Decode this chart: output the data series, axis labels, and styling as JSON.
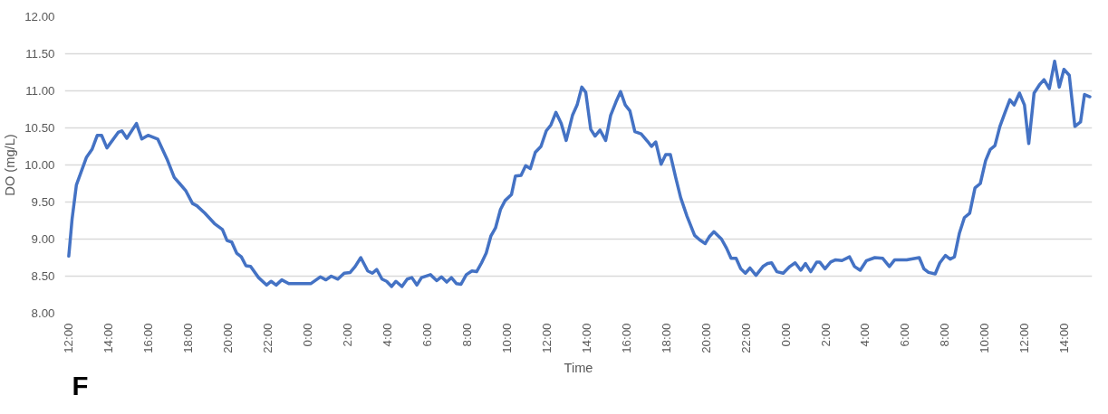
{
  "chart_data": {
    "type": "line",
    "xlabel": "Time",
    "ylabel": "DO (mg/L)",
    "annotations": [
      "F"
    ],
    "xlim": [
      "2000-01-01T11:48",
      "2000-01-03T15:24"
    ],
    "ylim": [
      8.0,
      12.0
    ],
    "xticks": [
      {
        "value": "2000-01-01T12:00",
        "label": "12:00"
      },
      {
        "value": "2000-01-01T14:00",
        "label": "14:00"
      },
      {
        "value": "2000-01-01T16:00",
        "label": "16:00"
      },
      {
        "value": "2000-01-01T18:00",
        "label": "18:00"
      },
      {
        "value": "2000-01-01T20:00",
        "label": "20:00"
      },
      {
        "value": "2000-01-01T22:00",
        "label": "22:00"
      },
      {
        "value": "2000-01-02T00:00",
        "label": "0:00"
      },
      {
        "value": "2000-01-02T02:00",
        "label": "2:00"
      },
      {
        "value": "2000-01-02T04:00",
        "label": "4:00"
      },
      {
        "value": "2000-01-02T06:00",
        "label": "6:00"
      },
      {
        "value": "2000-01-02T08:00",
        "label": "8:00"
      },
      {
        "value": "2000-01-02T10:00",
        "label": "10:00"
      },
      {
        "value": "2000-01-02T12:00",
        "label": "12:00"
      },
      {
        "value": "2000-01-02T14:00",
        "label": "14:00"
      },
      {
        "value": "2000-01-02T16:00",
        "label": "16:00"
      },
      {
        "value": "2000-01-02T18:00",
        "label": "18:00"
      },
      {
        "value": "2000-01-02T20:00",
        "label": "20:00"
      },
      {
        "value": "2000-01-02T22:00",
        "label": "22:00"
      },
      {
        "value": "2000-01-03T00:00",
        "label": "0:00"
      },
      {
        "value": "2000-01-03T02:00",
        "label": "2:00"
      },
      {
        "value": "2000-01-03T04:00",
        "label": "4:00"
      },
      {
        "value": "2000-01-03T06:00",
        "label": "6:00"
      },
      {
        "value": "2000-01-03T08:00",
        "label": "8:00"
      },
      {
        "value": "2000-01-03T10:00",
        "label": "10:00"
      },
      {
        "value": "2000-01-03T12:00",
        "label": "12:00"
      },
      {
        "value": "2000-01-03T14:00",
        "label": "14:00"
      }
    ],
    "yticks": [
      {
        "value": 8.0,
        "label": "8.00"
      },
      {
        "value": 8.5,
        "label": "8.50"
      },
      {
        "value": 9.0,
        "label": "9.00"
      },
      {
        "value": 9.5,
        "label": "9.50"
      },
      {
        "value": 10.0,
        "label": "10.00"
      },
      {
        "value": 10.5,
        "label": "10.50"
      },
      {
        "value": 11.0,
        "label": "11.00"
      },
      {
        "value": 11.5,
        "label": "11.50"
      },
      {
        "value": 12.0,
        "label": "12.00"
      }
    ],
    "grid": "y",
    "marker": "none",
    "line_style": "solid",
    "series": [
      {
        "color": "#4472c4",
        "x": [
          "2000-01-01T12:00",
          "2000-01-01T12:10",
          "2000-01-01T12:23",
          "2000-01-01T12:53",
          "2000-01-01T13:10",
          "2000-01-01T13:26",
          "2000-01-01T13:39",
          "2000-01-01T13:55",
          "2000-01-01T14:29",
          "2000-01-01T14:40",
          "2000-01-01T14:55",
          "2000-01-01T15:24",
          "2000-01-01T15:40",
          "2000-01-01T15:59",
          "2000-01-01T16:28",
          "2000-01-01T16:56",
          "2000-01-01T17:18",
          "2000-01-01T17:34",
          "2000-01-01T17:53",
          "2000-01-01T18:13",
          "2000-01-01T18:26",
          "2000-01-01T18:50",
          "2000-01-01T19:19",
          "2000-01-01T19:43",
          "2000-01-01T19:57",
          "2000-01-01T20:11",
          "2000-01-01T20:26",
          "2000-01-01T20:40",
          "2000-01-01T20:54",
          "2000-01-01T21:08",
          "2000-01-01T21:32",
          "2000-01-01T21:56",
          "2000-01-01T22:10",
          "2000-01-01T22:25",
          "2000-01-01T22:42",
          "2000-01-01T23:03",
          "2000-01-02T00:10",
          "2000-01-02T00:38",
          "2000-01-02T00:55",
          "2000-01-02T01:11",
          "2000-01-02T01:31",
          "2000-01-02T01:50",
          "2000-01-02T02:08",
          "2000-01-02T02:23",
          "2000-01-02T02:40",
          "2000-01-02T03:01",
          "2000-01-02T03:15",
          "2000-01-02T03:28",
          "2000-01-02T03:44",
          "2000-01-02T03:58",
          "2000-01-02T04:13",
          "2000-01-02T04:26",
          "2000-01-02T04:44",
          "2000-01-02T05:00",
          "2000-01-02T05:14",
          "2000-01-02T05:29",
          "2000-01-02T05:43",
          "2000-01-02T06:10",
          "2000-01-02T06:29",
          "2000-01-02T06:43",
          "2000-01-02T06:59",
          "2000-01-02T07:13",
          "2000-01-02T07:28",
          "2000-01-02T07:42",
          "2000-01-02T07:58",
          "2000-01-02T08:15",
          "2000-01-02T08:29",
          "2000-01-02T08:44",
          "2000-01-02T08:58",
          "2000-01-02T09:12",
          "2000-01-02T09:26",
          "2000-01-02T09:41",
          "2000-01-02T09:55",
          "2000-01-02T10:14",
          "2000-01-02T10:26",
          "2000-01-02T10:43",
          "2000-01-02T10:57",
          "2000-01-02T11:11",
          "2000-01-02T11:26",
          "2000-01-02T11:43",
          "2000-01-02T11:59",
          "2000-01-02T12:13",
          "2000-01-02T12:28",
          "2000-01-02T12:44",
          "2000-01-02T12:59",
          "2000-01-02T13:18",
          "2000-01-02T13:32",
          "2000-01-02T13:46",
          "2000-01-02T13:58",
          "2000-01-02T14:13",
          "2000-01-02T14:26",
          "2000-01-02T14:41",
          "2000-01-02T14:58",
          "2000-01-02T15:13",
          "2000-01-02T15:29",
          "2000-01-02T15:43",
          "2000-01-02T15:57",
          "2000-01-02T16:11",
          "2000-01-02T16:26",
          "2000-01-02T16:45",
          "2000-01-02T17:04",
          "2000-01-02T17:16",
          "2000-01-02T17:29",
          "2000-01-02T17:45",
          "2000-01-02T17:59",
          "2000-01-02T18:13",
          "2000-01-02T18:29",
          "2000-01-02T18:44",
          "2000-01-02T19:03",
          "2000-01-02T19:26",
          "2000-01-02T19:41",
          "2000-01-02T19:58",
          "2000-01-02T20:10",
          "2000-01-02T20:24",
          "2000-01-02T20:47",
          "2000-01-02T21:02",
          "2000-01-02T21:16",
          "2000-01-02T21:31",
          "2000-01-02T21:45",
          "2000-01-02T21:59",
          "2000-01-02T22:13",
          "2000-01-02T22:31",
          "2000-01-02T22:52",
          "2000-01-02T23:06",
          "2000-01-02T23:18",
          "2000-01-02T23:34",
          "2000-01-02T23:53",
          "2000-01-03T00:13",
          "2000-01-03T00:29",
          "2000-01-03T00:46",
          "2000-01-03T01:00",
          "2000-01-03T01:16",
          "2000-01-03T01:34",
          "2000-01-03T01:43",
          "2000-01-03T01:59",
          "2000-01-03T02:16",
          "2000-01-03T02:31",
          "2000-01-03T02:50",
          "2000-01-03T03:13",
          "2000-01-03T03:28",
          "2000-01-03T03:45",
          "2000-01-03T04:04",
          "2000-01-03T04:29",
          "2000-01-03T04:53",
          "2000-01-03T05:13",
          "2000-01-03T05:29",
          "2000-01-03T06:05",
          "2000-01-03T06:43",
          "2000-01-03T06:57",
          "2000-01-03T07:11",
          "2000-01-03T07:31",
          "2000-01-03T07:45",
          "2000-01-03T08:02",
          "2000-01-03T08:16",
          "2000-01-03T08:29",
          "2000-01-03T08:44",
          "2000-01-03T08:59",
          "2000-01-03T09:15",
          "2000-01-03T09:31",
          "2000-01-03T09:47",
          "2000-01-03T10:03",
          "2000-01-03T10:17",
          "2000-01-03T10:31",
          "2000-01-03T10:46",
          "2000-01-03T11:00",
          "2000-01-03T11:16",
          "2000-01-03T11:29",
          "2000-01-03T11:45",
          "2000-01-03T12:00",
          "2000-01-03T12:13",
          "2000-01-03T12:29",
          "2000-01-03T12:45",
          "2000-01-03T12:59",
          "2000-01-03T13:15",
          "2000-01-03T13:31",
          "2000-01-03T13:45",
          "2000-01-03T13:59",
          "2000-01-03T14:15",
          "2000-01-03T14:32",
          "2000-01-03T14:49",
          "2000-01-03T15:01",
          "2000-01-03T15:17"
        ],
        "values": [
          8.77,
          9.27,
          9.73,
          10.1,
          10.21,
          10.4,
          10.4,
          10.23,
          10.44,
          10.46,
          10.36,
          10.56,
          10.35,
          10.4,
          10.35,
          10.08,
          9.83,
          9.75,
          9.65,
          9.48,
          9.45,
          9.35,
          9.21,
          9.13,
          8.98,
          8.96,
          8.81,
          8.76,
          8.64,
          8.63,
          8.48,
          8.38,
          8.43,
          8.38,
          8.45,
          8.4,
          8.4,
          8.49,
          8.45,
          8.5,
          8.46,
          8.54,
          8.55,
          8.63,
          8.75,
          8.57,
          8.54,
          8.59,
          8.46,
          8.43,
          8.36,
          8.43,
          8.36,
          8.46,
          8.48,
          8.38,
          8.48,
          8.52,
          8.44,
          8.49,
          8.42,
          8.48,
          8.4,
          8.39,
          8.52,
          8.57,
          8.56,
          8.68,
          8.81,
          9.04,
          9.15,
          9.4,
          9.52,
          9.6,
          9.85,
          9.86,
          9.99,
          9.95,
          10.17,
          10.25,
          10.46,
          10.54,
          10.71,
          10.56,
          10.33,
          10.67,
          10.81,
          11.05,
          10.98,
          10.48,
          10.39,
          10.47,
          10.33,
          10.67,
          10.85,
          10.99,
          10.81,
          10.73,
          10.45,
          10.42,
          10.32,
          10.25,
          10.31,
          10.01,
          10.14,
          10.14,
          9.83,
          9.56,
          9.31,
          9.05,
          8.99,
          8.94,
          9.03,
          9.1,
          9.0,
          8.88,
          8.74,
          8.74,
          8.6,
          8.54,
          8.61,
          8.51,
          8.63,
          8.67,
          8.68,
          8.56,
          8.54,
          8.63,
          8.68,
          8.58,
          8.67,
          8.56,
          8.69,
          8.69,
          8.6,
          8.69,
          8.72,
          8.71,
          8.76,
          8.63,
          8.58,
          8.71,
          8.75,
          8.74,
          8.63,
          8.72,
          8.72,
          8.75,
          8.6,
          8.55,
          8.53,
          8.68,
          8.78,
          8.73,
          8.76,
          9.08,
          9.29,
          9.35,
          9.69,
          9.75,
          10.06,
          10.21,
          10.26,
          10.52,
          10.69,
          10.88,
          10.81,
          10.97,
          10.81,
          10.29,
          10.97,
          11.08,
          11.15,
          11.03,
          11.4,
          11.05,
          11.29,
          11.21,
          10.52,
          10.58,
          10.95,
          10.92
        ]
      }
    ]
  }
}
